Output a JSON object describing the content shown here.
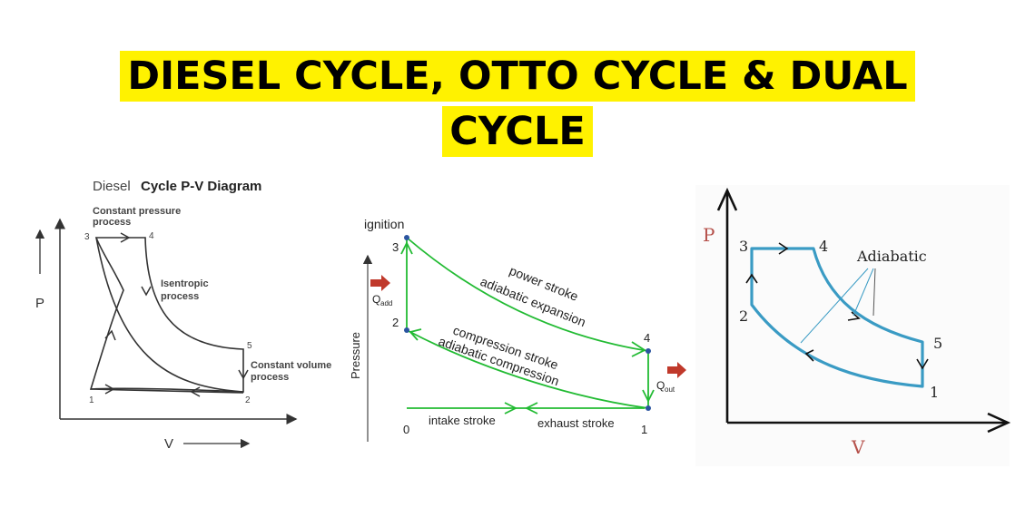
{
  "title": {
    "line1": "DIESEL CYCLE, OTTO CYCLE & DUAL",
    "line2": "CYCLE"
  },
  "diesel": {
    "heading_a": "Diesel",
    "heading_b": "Cycle P-V Diagram",
    "label_const_pressure_1": "Constant pressure",
    "label_const_pressure_2": "process",
    "label_isentropic_1": "Isentropic",
    "label_isentropic_2": "process",
    "label_const_volume_1": "Constant volume",
    "label_const_volume_2": "process",
    "axis_p": "P",
    "axis_v": "V",
    "points": [
      "1",
      "2",
      "3",
      "4",
      "5"
    ]
  },
  "otto": {
    "ignition": "ignition",
    "ylabel": "Pressure",
    "q_add": "Q",
    "q_add_sub": "add",
    "q_out": "Q",
    "q_out_sub": "out",
    "power_stroke": "power stroke",
    "adiabatic_expansion": "adiabatic expansion",
    "compression_stroke": "compression stroke",
    "adiabatic_compression": "adiabatic compression",
    "intake_stroke": "intake stroke",
    "exhaust_stroke": "exhaust stroke",
    "points": [
      "0",
      "1",
      "2",
      "3",
      "4"
    ]
  },
  "dual": {
    "axis_p": "P",
    "axis_v": "V",
    "adiabatic": "Adiabatic",
    "points": [
      "1",
      "2",
      "3",
      "4",
      "5"
    ]
  },
  "colors": {
    "title_highlight": "#fff200",
    "otto_green": "#22bb33",
    "otto_point": "#2b55a0",
    "q_arrow": "#c0392b",
    "dual_curve": "#3a9bc4",
    "dual_axis_label": "#b5504a"
  }
}
